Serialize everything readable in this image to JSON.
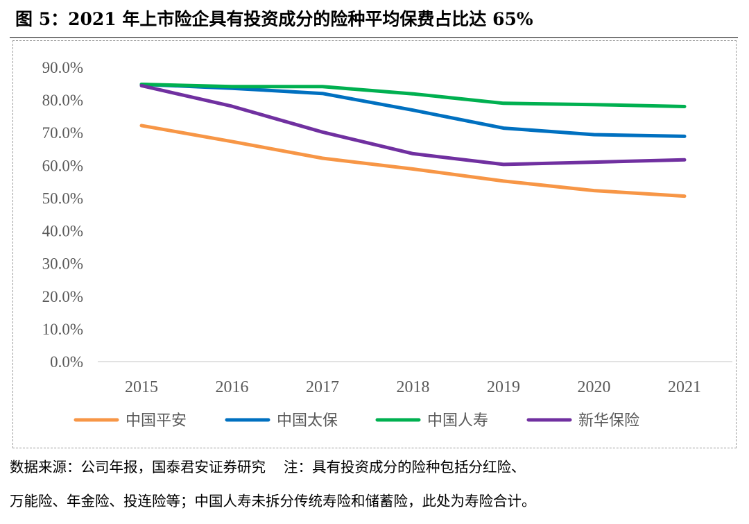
{
  "figure": {
    "title": "图 5：2021 年上市险企具有投资成分的险种平均保费占比达 65%",
    "source": "数据来源：公司年报，国泰君安证券研究",
    "note_part1": "注：具有投资成分的险种包括分红险、",
    "note_line2": "万能险、年金险、投连险等；中国人寿未拆分传统寿险和储蓄险，此处为寿险合计。"
  },
  "chart_data": {
    "type": "line",
    "title": "",
    "xlabel": "",
    "ylabel": "",
    "categories": [
      "2015",
      "2016",
      "2017",
      "2018",
      "2019",
      "2020",
      "2021"
    ],
    "ylim": [
      0,
      90
    ],
    "yticks": [
      0,
      10,
      20,
      30,
      40,
      50,
      60,
      70,
      80,
      90
    ],
    "ytick_labels": [
      "0.0%",
      "10.0%",
      "20.0%",
      "30.0%",
      "40.0%",
      "50.0%",
      "60.0%",
      "70.0%",
      "80.0%",
      "90.0%"
    ],
    "grid": false,
    "legend_position": "bottom",
    "series": [
      {
        "name": "中国平安",
        "color": "#F79646",
        "values": [
          72.2,
          67.3,
          62.2,
          58.9,
          55.2,
          52.3,
          50.6
        ]
      },
      {
        "name": "中国太保",
        "color": "#0070C0",
        "values": [
          84.8,
          83.6,
          82.0,
          76.9,
          71.4,
          69.4,
          68.9
        ]
      },
      {
        "name": "中国人寿",
        "color": "#00B050",
        "values": [
          84.8,
          84.1,
          84.1,
          81.9,
          79.0,
          78.6,
          78.0
        ]
      },
      {
        "name": "新华保险",
        "color": "#7030A0",
        "values": [
          84.4,
          78.1,
          70.2,
          63.6,
          60.3,
          61.0,
          61.7
        ]
      }
    ]
  }
}
